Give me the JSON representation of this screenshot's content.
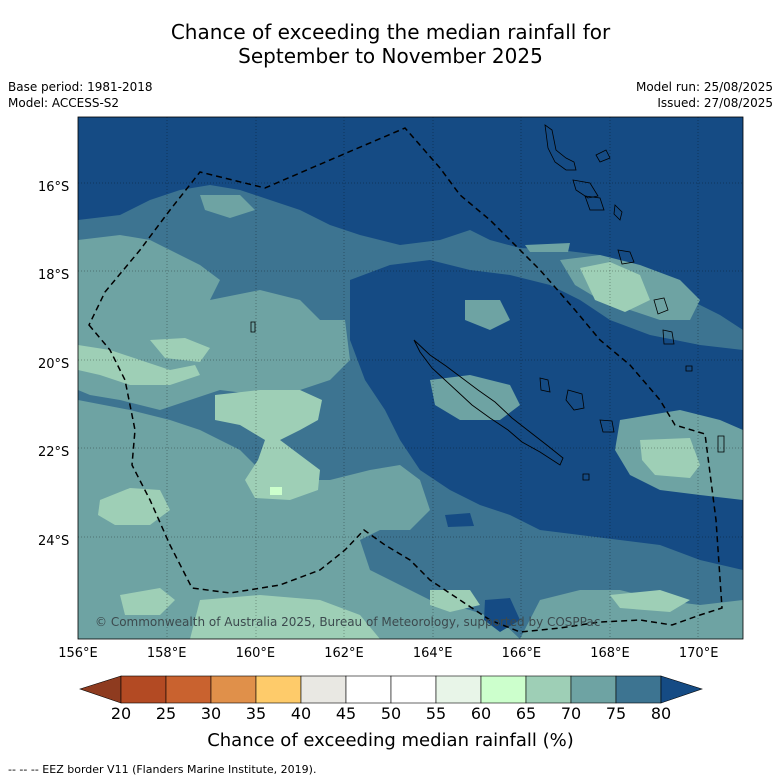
{
  "title_line1": "Chance of exceeding the median rainfall for",
  "title_line2": "September to November 2025",
  "meta_left": {
    "base_period": "Base period: 1981-2018",
    "model": "Model: ACCESS-S2"
  },
  "meta_right": {
    "model_run": "Model run: 25/08/2025",
    "issued": "Issued: 27/08/2025"
  },
  "copyright": "© Commonwealth of Australia 2025, Bureau of Meteorology, supported by COSPPac",
  "map": {
    "lon_range": [
      156,
      171
    ],
    "lat_range": [
      -26.2,
      -14.4
    ],
    "lat_ticks": [
      {
        "lat": -16,
        "label": "16°S"
      },
      {
        "lat": -18,
        "label": "18°S"
      },
      {
        "lat": -20,
        "label": "20°S"
      },
      {
        "lat": -22,
        "label": "22°S"
      },
      {
        "lat": -24,
        "label": "24°S"
      }
    ],
    "lon_ticks": [
      {
        "lon": 156,
        "label": "156°E"
      },
      {
        "lon": 158,
        "label": "158°E"
      },
      {
        "lon": 160,
        "label": "160°E"
      },
      {
        "lon": 162,
        "label": "162°E"
      },
      {
        "lon": 164,
        "label": "164°E"
      },
      {
        "lon": 166,
        "label": "166°E"
      },
      {
        "lon": 168,
        "label": "168°E"
      },
      {
        "lon": 170,
        "label": "170°E"
      }
    ]
  },
  "colorbar": {
    "title": "Chance of exceeding median rainfall (%)",
    "ticks": [
      "20",
      "25",
      "30",
      "35",
      "40",
      "45",
      "50",
      "55",
      "60",
      "65",
      "70",
      "75",
      "80"
    ],
    "colors": [
      "#b34a23",
      "#c9622f",
      "#e0904a",
      "#fecb6a",
      "#e9e8e3",
      "#ffffff",
      "#ffffff",
      "#e8f5e8",
      "#ccffcc",
      "#9ecfb6",
      "#6ea3a3",
      "#3d7491"
    ],
    "under_color": "#8e3b1f",
    "over_color": "#154b84"
  },
  "legend_note": "-- -- -- EEZ border V11 (Flanders Marine Institute, 2019)."
}
